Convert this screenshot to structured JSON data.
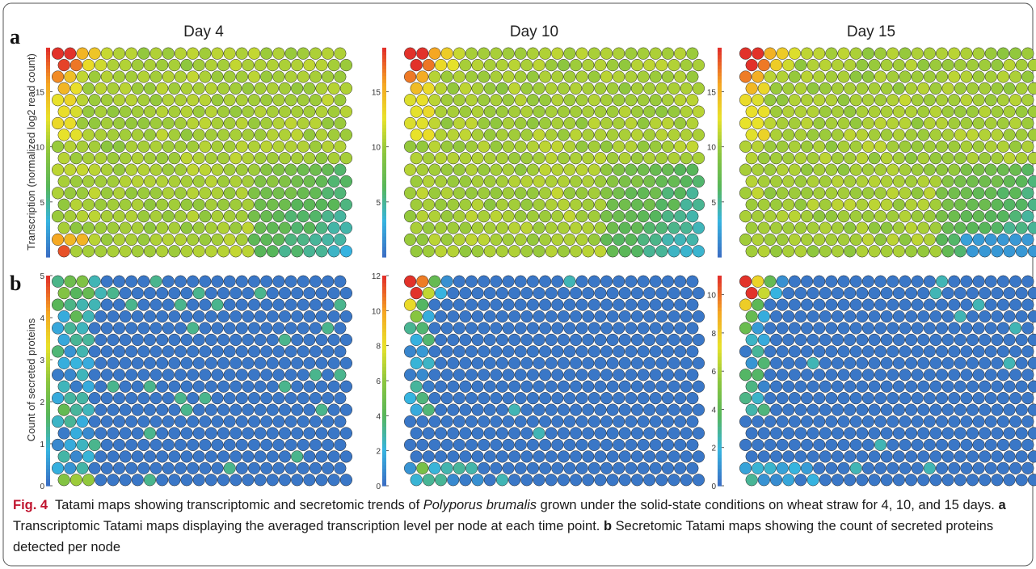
{
  "figure": {
    "panel_labels": [
      "a",
      "b"
    ],
    "day_titles": [
      "Day 4",
      "Day 10",
      "Day 15"
    ],
    "ylabel_a": "Transcription (normalized log2 read count)",
    "ylabel_b": "Count of secreted proteins",
    "colorbar_ticks_a": [
      [
        "15",
        "10",
        "5"
      ],
      [
        "15",
        "10",
        "5"
      ],
      [
        "15",
        "10",
        "5"
      ]
    ],
    "colorbar_ticks_b": [
      [
        "5",
        "4",
        "3",
        "2",
        "1",
        "0"
      ],
      [
        "12",
        "10",
        "8",
        "6",
        "4",
        "2",
        "0"
      ],
      [
        "10",
        "8",
        "6",
        "4",
        "2",
        "0"
      ]
    ],
    "colorbar_ranges_a": [
      [
        0,
        19
      ],
      [
        0,
        19
      ],
      [
        0,
        19
      ]
    ],
    "colorbar_ranges_b": [
      [
        0,
        5
      ],
      [
        0,
        12
      ],
      [
        0,
        11
      ]
    ],
    "grid": {
      "columns": 24,
      "rows": 18
    },
    "colormap": [
      "#3a6fc4",
      "#36b4e0",
      "#57b65a",
      "#8cc63e",
      "#e8e22a",
      "#f5a623",
      "#e2322a"
    ]
  },
  "caption": {
    "label": "Fig. 4",
    "text1": "Tatami maps showing transcriptomic and secretomic trends of ",
    "species": "Polyporus brumalis",
    "text2": " grown under the solid-state conditions on wheat straw for 4, 10, and 15 days. ",
    "a_label": "a",
    "a_text": " Transcriptomic Tatami maps displaying the averaged transcription level per node at each time point. ",
    "b_label": "b",
    "b_text": " Secretomic Tatami maps showing the count of secreted proteins detected per node"
  }
}
